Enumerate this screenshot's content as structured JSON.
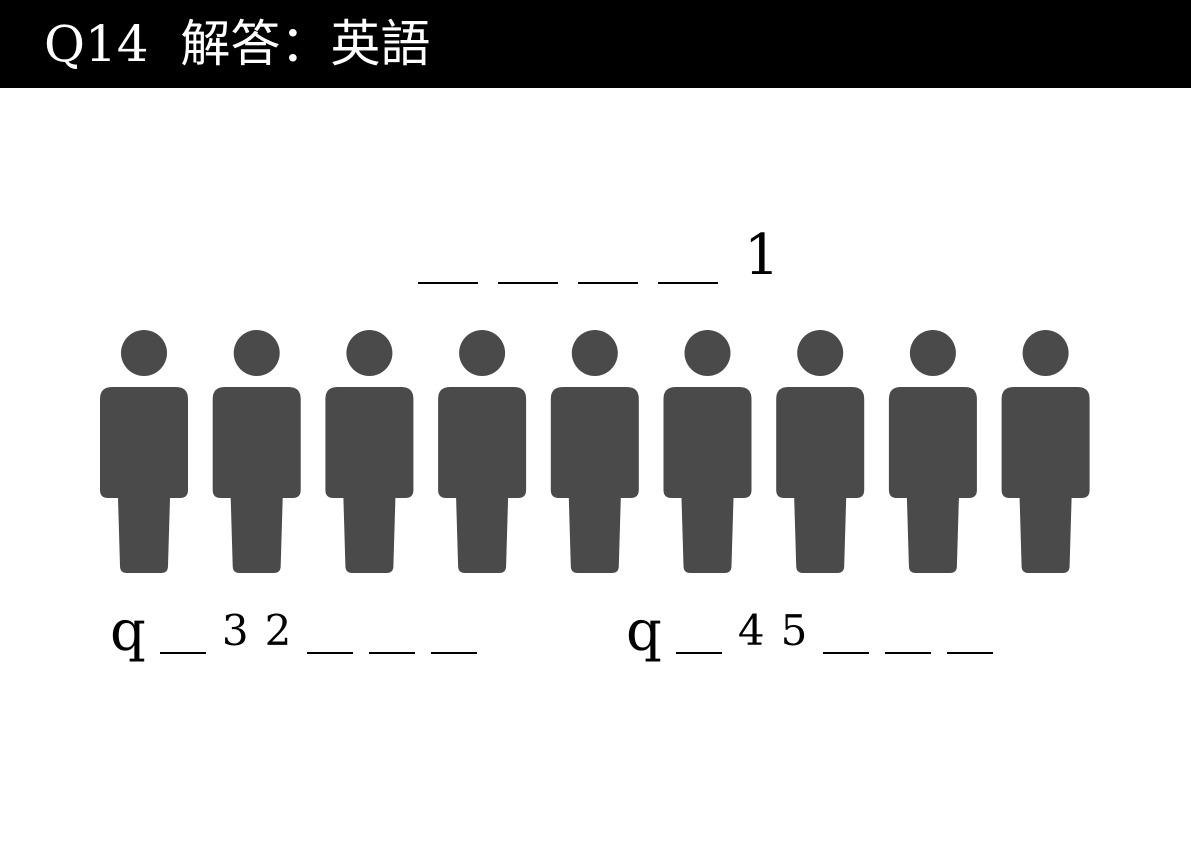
{
  "header": {
    "title": "Q14  解答：英語",
    "background": "#000000",
    "text_color": "#ffffff"
  },
  "puzzle": {
    "top": {
      "blanks": 4,
      "revealed": "1"
    },
    "bottom_left": {
      "prefix": "q",
      "sequence": [
        "",
        "3",
        "2",
        "",
        "",
        ""
      ]
    },
    "bottom_right": {
      "prefix": "q",
      "sequence": [
        "",
        "4",
        "5",
        "",
        "",
        ""
      ]
    }
  },
  "figures": {
    "icon": "person-icon",
    "count": 9,
    "color": "#4a4a4a"
  }
}
